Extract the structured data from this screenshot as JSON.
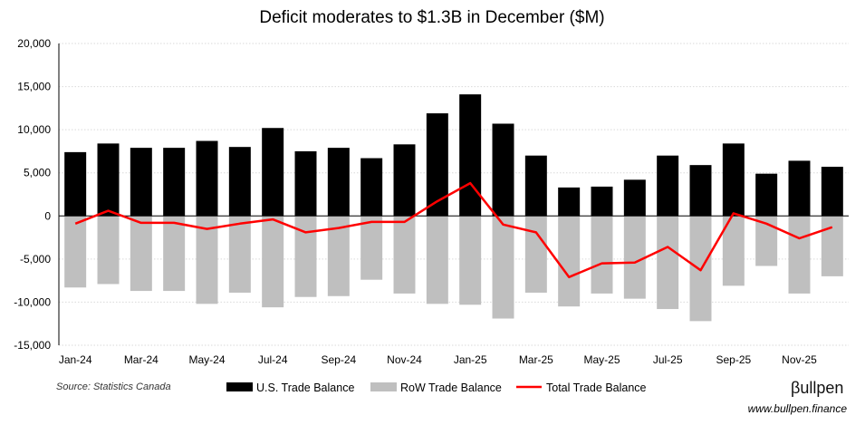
{
  "chart_data": {
    "type": "bar",
    "title": "Deficit moderates to $1.3B in December ($M)",
    "xlabel": "",
    "ylabel": "",
    "ylim": [
      -15000,
      20000
    ],
    "yticks": [
      20000,
      15000,
      10000,
      5000,
      0,
      -5000,
      -10000,
      -15000
    ],
    "ytick_labels": [
      "20,000",
      "15,000",
      "10,000",
      "5,000",
      "0",
      "-5,000",
      "-10,000",
      "-15,000"
    ],
    "grid": true,
    "categories": [
      "Jan-24",
      "Feb-24",
      "Mar-24",
      "Apr-24",
      "May-24",
      "Jun-24",
      "Jul-24",
      "Aug-24",
      "Sep-24",
      "Oct-24",
      "Nov-24",
      "Dec-24",
      "Jan-25",
      "Feb-25",
      "Mar-25",
      "Apr-25",
      "May-25",
      "Jun-25",
      "Jul-25",
      "Aug-25",
      "Sep-25",
      "Oct-25",
      "Nov-25",
      "Dec-25"
    ],
    "xtick_labels": [
      "Jan-24",
      "",
      "Mar-24",
      "",
      "May-24",
      "",
      "Jul-24",
      "",
      "Sep-24",
      "",
      "Nov-24",
      "",
      "Jan-25",
      "",
      "Mar-25",
      "",
      "May-25",
      "",
      "Jul-25",
      "",
      "Sep-25",
      "",
      "Nov-25",
      ""
    ],
    "series": [
      {
        "name": "U.S. Trade Balance",
        "type": "bar",
        "color": "#000000",
        "values": [
          7400,
          8400,
          7900,
          7900,
          8700,
          8000,
          10200,
          7500,
          7900,
          6700,
          8300,
          11900,
          14100,
          10700,
          7000,
          3300,
          3400,
          4200,
          7000,
          5900,
          8400,
          4900,
          6400,
          5700
        ]
      },
      {
        "name": "RoW Trade Balance",
        "type": "bar",
        "color": "#bfbfbf",
        "values": [
          -8300,
          -7900,
          -8700,
          -8700,
          -10200,
          -8900,
          -10600,
          -9400,
          -9300,
          -7400,
          -9000,
          -10200,
          -10300,
          -11900,
          -8900,
          -10500,
          -9000,
          -9600,
          -10800,
          -12200,
          -8100,
          -5800,
          -9000,
          -7000
        ]
      },
      {
        "name": "Total Trade Balance",
        "type": "line",
        "color": "#ff0000",
        "values": [
          -900,
          600,
          -800,
          -800,
          -1500,
          -900,
          -400,
          -1900,
          -1400,
          -700,
          -700,
          1700,
          3800,
          -1000,
          -1900,
          -7100,
          -5500,
          -5400,
          -3600,
          -6300,
          300,
          -900,
          -2600,
          -1300
        ]
      }
    ],
    "legend": "bottom-center"
  },
  "footer": {
    "source": "Source: Statistics Canada",
    "brand": "βullpen",
    "url": "www.bullpen.finance"
  },
  "colors": {
    "us_bar": "#000000",
    "row_bar": "#bfbfbf",
    "total_line": "#ff0000",
    "grid": "#d9d9d9"
  }
}
